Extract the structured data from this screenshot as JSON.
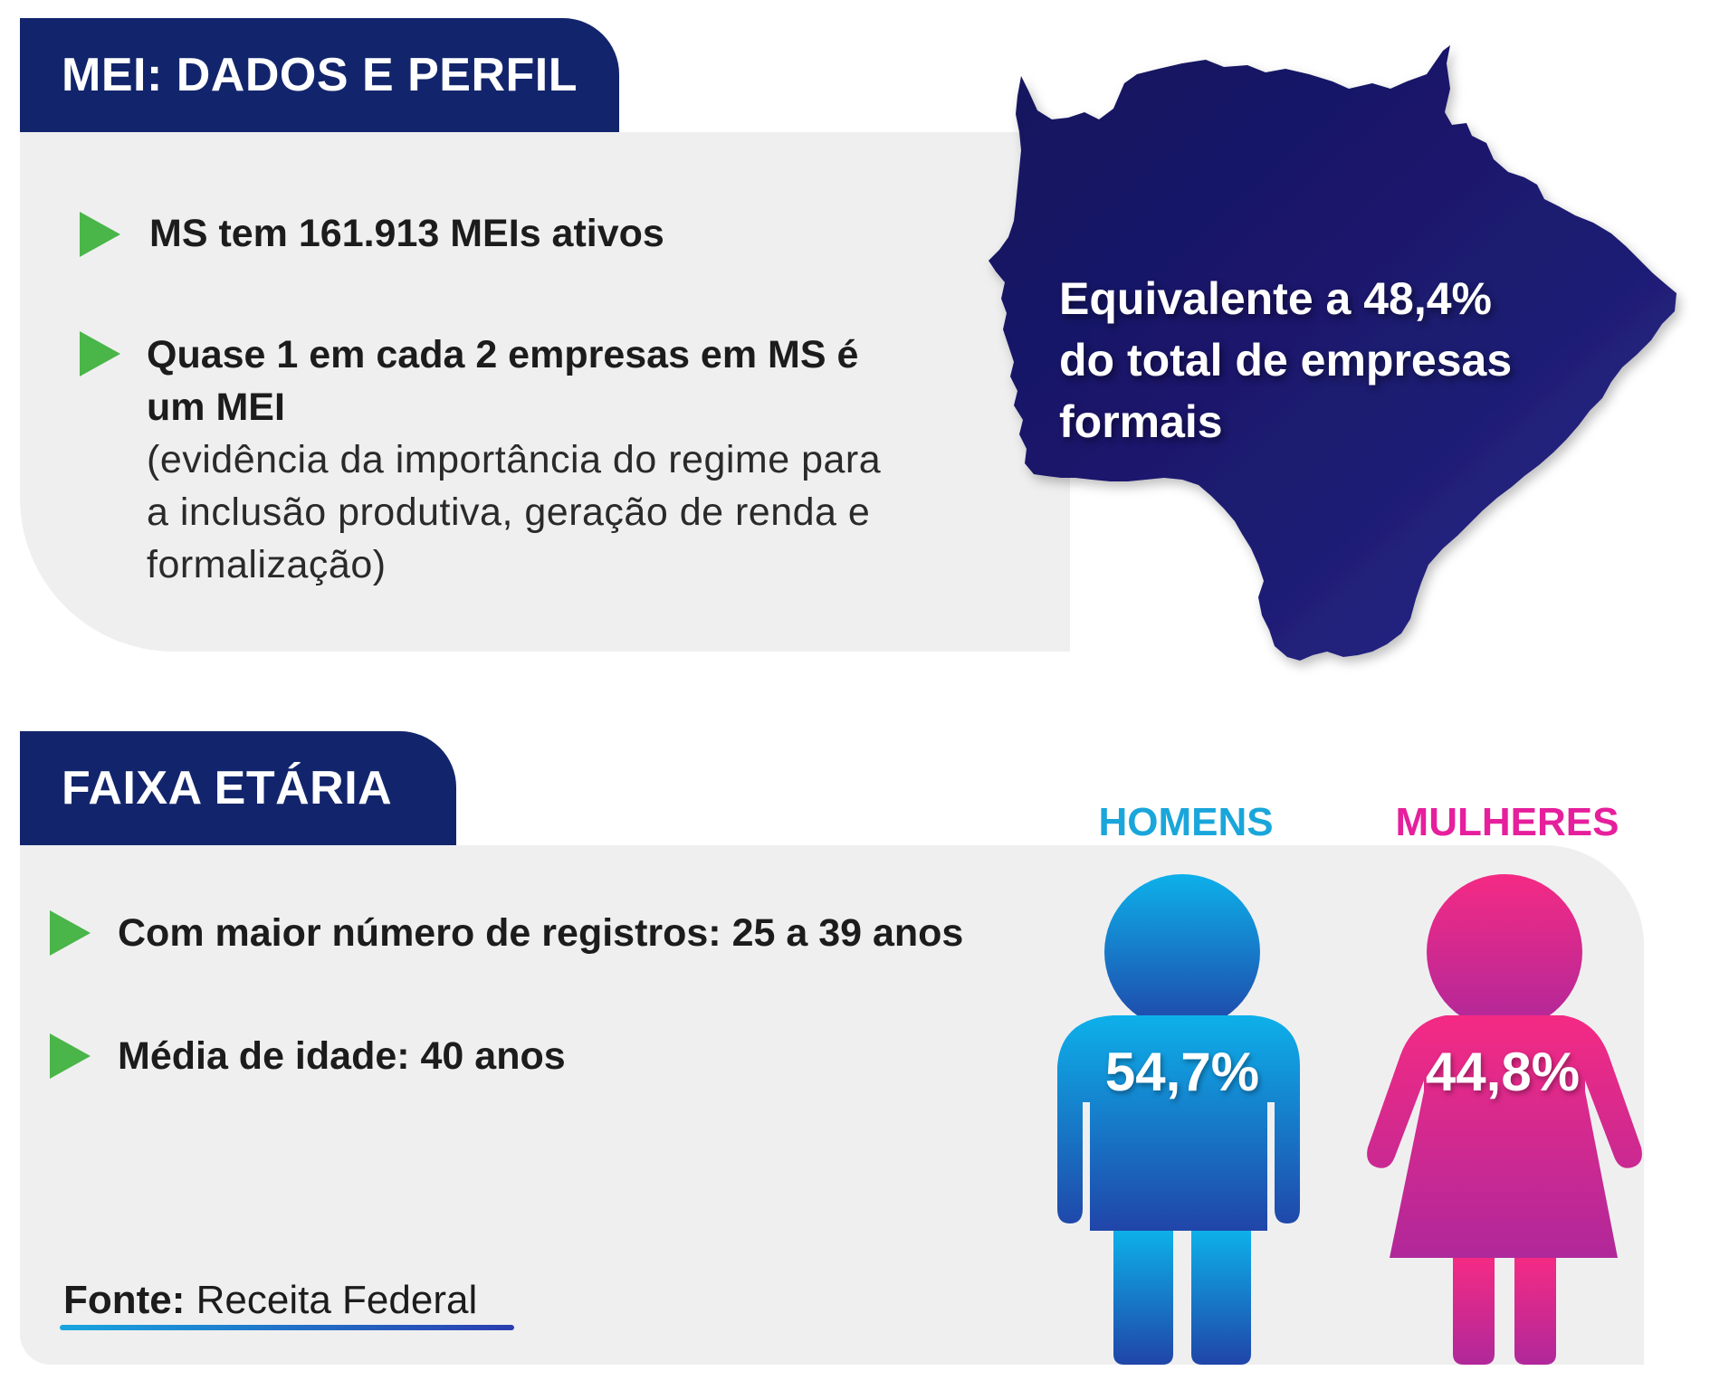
{
  "section1": {
    "title": "MEI: DADOS E PERFIL",
    "bullet1": "MS tem 161.913 MEIs ativos",
    "bullet2_bold_line1": "Quase 1 em cada 2 empresas em MS é",
    "bullet2_bold_line2": "um MEI",
    "bullet2_note_line1": "(evidência da importância do regime para",
    "bullet2_note_line2": "a inclusão produtiva, geração de renda e",
    "bullet2_note_line3": "formalização)",
    "map_line1": "Equivalente a 48,4%",
    "map_line2": "do total de empresas",
    "map_line3": "formais"
  },
  "section2": {
    "title": "FAIXA ETÁRIA",
    "bullet1": "Com maior número de registros: 25 a 39 anos",
    "bullet2": "Média de idade: 40 anos"
  },
  "gender": {
    "men_label": "HOMENS",
    "men_value": "54,7%",
    "women_label": "MULHERES",
    "women_value": "44,8%"
  },
  "source": {
    "label": "Fonte:",
    "value": "Receita Federal"
  },
  "colors": {
    "navy": "#12256c",
    "bullet_green": "#4ab548",
    "men_blue": "#1aa6da",
    "women_pink": "#e61f9c",
    "panel_gray": "#efeff0"
  },
  "icons": [
    "triangle-bullet-icon",
    "ms-state-map-icon",
    "male-figure-icon",
    "female-figure-icon"
  ]
}
